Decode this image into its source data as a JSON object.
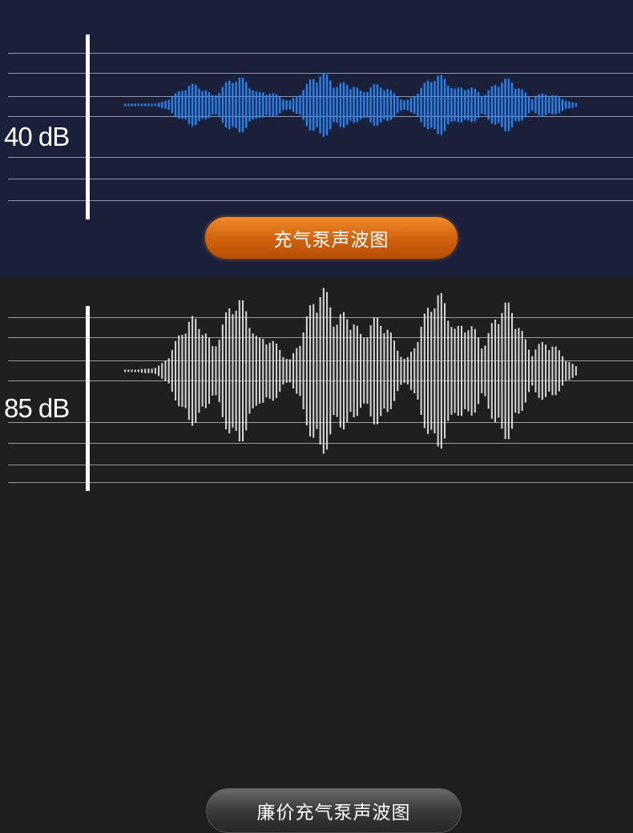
{
  "top_panel": {
    "level_label": "40 dB",
    "caption": "充气泵声波图",
    "wave_color": "#2f8cff",
    "background": "#1a1f3a",
    "button_color": "#e0731a"
  },
  "bottom_panel": {
    "level_label": "85 dB",
    "caption": "廉价充气泵声波图",
    "wave_color": "#e6e6e6",
    "background": "#1f1f1f",
    "button_color": "#3c3c3c"
  }
}
